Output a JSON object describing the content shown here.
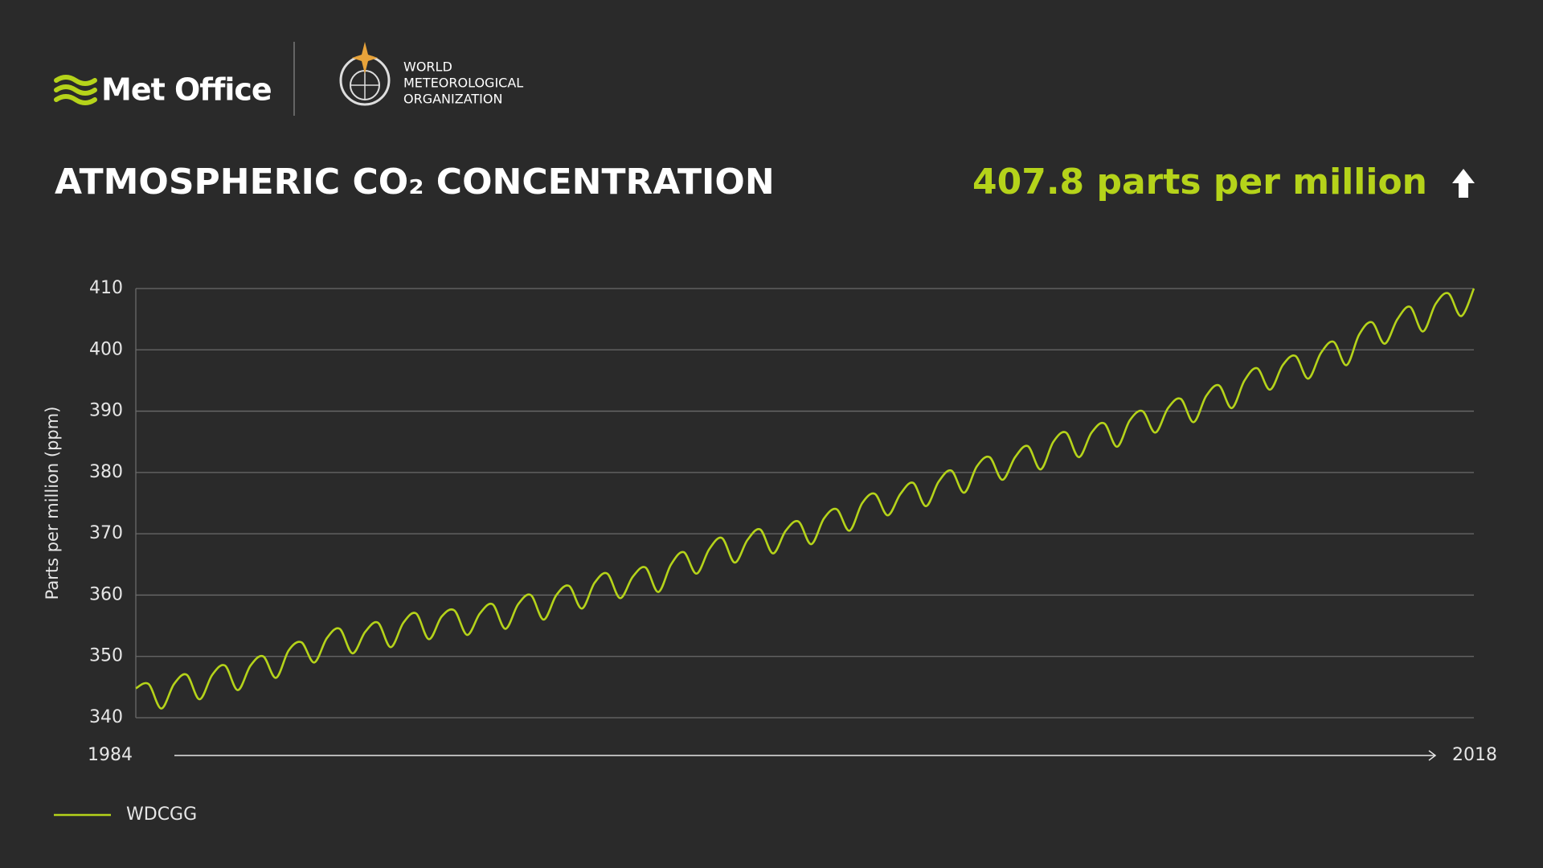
{
  "header": {
    "brand": "Met Office",
    "partner": [
      "WORLD",
      "METEOROLOGICAL",
      "ORGANIZATION"
    ]
  },
  "chart_data": {
    "type": "line",
    "title": "ATMOSPHERIC CO₂ CONCENTRATION",
    "highlight": "407.8 parts per million",
    "highlight_color": "#b5d31a",
    "y_label": "Parts per million (ppm)",
    "x_start_label": "1984",
    "x_end_label": "2018",
    "ylim": [
      340,
      410
    ],
    "yticks": [
      340,
      350,
      360,
      370,
      380,
      390,
      400,
      410
    ],
    "grid": true,
    "series": [
      {
        "name": "WDCGG",
        "color": "#b5d31a",
        "values": [
          344.8,
          345.5,
          341.5,
          345.5,
          347,
          343,
          347,
          348.5,
          344.5,
          348.5,
          350,
          346.5,
          351,
          352.3,
          349,
          353,
          354.5,
          350.5,
          354,
          355.5,
          351.5,
          355.5,
          357,
          352.8,
          356.5,
          357.5,
          353.5,
          357,
          358.5,
          354.5,
          358.5,
          360,
          356,
          360,
          361.5,
          357.8,
          362,
          363.5,
          359.5,
          363,
          364.5,
          360.5,
          365,
          367,
          363.5,
          367.5,
          369.3,
          365.3,
          369,
          370.7,
          366.8,
          370.5,
          372,
          368.3,
          372.5,
          374,
          370.5,
          375,
          376.5,
          373,
          376.5,
          378.3,
          374.5,
          378.5,
          380.3,
          376.7,
          381,
          382.5,
          378.8,
          382.5,
          384.3,
          380.5,
          385,
          386.5,
          382.5,
          386.5,
          388,
          384.2,
          388.5,
          390,
          386.5,
          390.5,
          392,
          388.2,
          392.5,
          394.2,
          390.5,
          395,
          397,
          393.5,
          397.5,
          399,
          395.3,
          399.5,
          401.3,
          397.5,
          402.5,
          404.5,
          401,
          405,
          407,
          403,
          407.5,
          409.2,
          405.5,
          410
        ]
      }
    ]
  }
}
